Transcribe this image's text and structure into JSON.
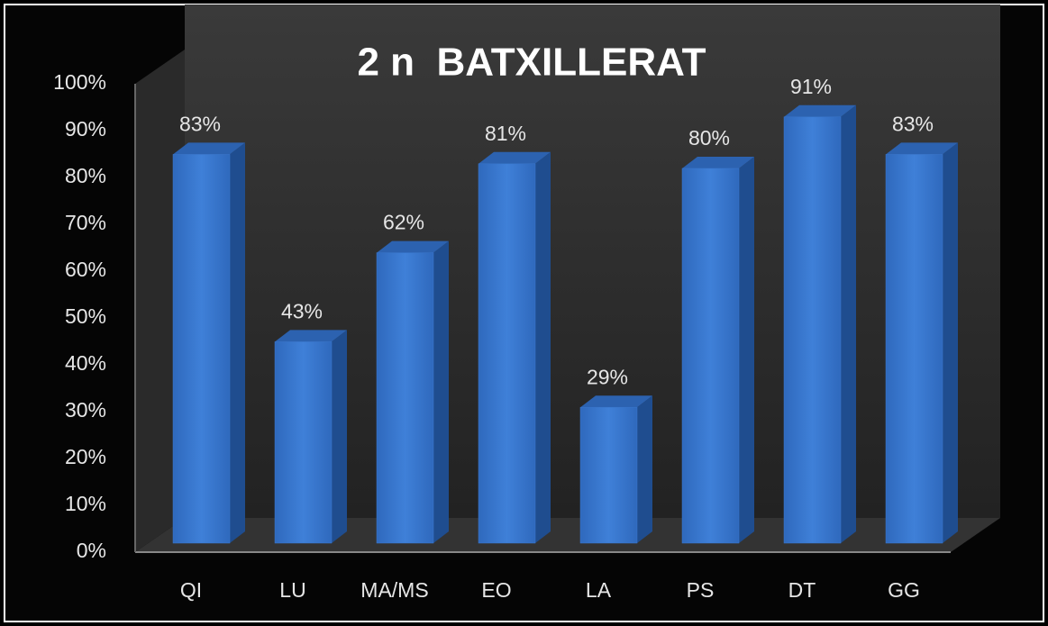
{
  "chart_data": {
    "type": "bar3d",
    "title": "2 n  BATXILLERAT",
    "categories": [
      "QI",
      "LU",
      "MA/MS",
      "EO",
      "LA",
      "PS",
      "DT",
      "GG"
    ],
    "values": [
      83,
      43,
      62,
      81,
      29,
      80,
      91,
      83
    ],
    "value_labels": [
      "83%",
      "43%",
      "62%",
      "81%",
      "29%",
      "80%",
      "91%",
      "83%"
    ],
    "color": "#3a78cf",
    "ylim": [
      0,
      100
    ],
    "yticks": [
      {
        "value": 0,
        "label": "0%"
      },
      {
        "value": 10,
        "label": "10%"
      },
      {
        "value": 20,
        "label": "20%"
      },
      {
        "value": 30,
        "label": "30%"
      },
      {
        "value": 40,
        "label": "40%"
      },
      {
        "value": 50,
        "label": "50%"
      },
      {
        "value": 60,
        "label": "60%"
      },
      {
        "value": 70,
        "label": "70%"
      },
      {
        "value": 80,
        "label": "80%"
      },
      {
        "value": 90,
        "label": "90%"
      },
      {
        "value": 100,
        "label": "100%"
      }
    ],
    "grid": false
  }
}
